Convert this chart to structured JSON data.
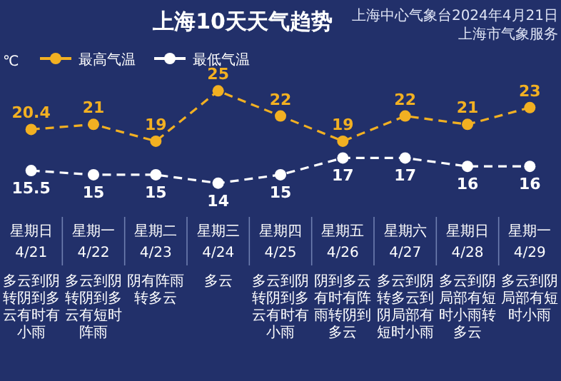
{
  "chart_data": {
    "type": "line",
    "title": "上海10天天气趋势",
    "ylabel": "℃",
    "categories": [
      "4/21",
      "4/22",
      "4/23",
      "4/24",
      "4/25",
      "4/26",
      "4/27",
      "4/28",
      "4/29"
    ],
    "series": [
      {
        "name": "最高气温",
        "color": "#f2b022",
        "values": [
          20.4,
          21,
          19,
          25,
          22,
          19,
          22,
          21,
          23
        ]
      },
      {
        "name": "最低气温",
        "color": "#ffffff",
        "values": [
          15.5,
          15,
          15,
          14,
          15,
          17,
          17,
          16,
          16
        ]
      }
    ],
    "data_labels": true,
    "marker": "circle",
    "line_style": "dashed",
    "legend": "top left",
    "tick_labels": "x",
    "annotations": [
      "上海中心气象台2024年4月21日",
      "上海市气象服务",
      "星期日",
      "星期一",
      "星期二",
      "星期三",
      "星期四",
      "星期五",
      "星期六",
      "星期日",
      "星期一",
      "多云到阴转阴到多云有时有小雨",
      "多云到阴转阴到多云有短时阵雨",
      "阴有阵雨转多云",
      "多云",
      "多云到阴转阴到多云有时有小雨",
      "阴到多云有时有阵雨转阴到多云",
      "多云到阴转多云到阴局部有短时小雨",
      "多云到阴局部有短时小雨转多云",
      "多云到阴局部有短时小雨"
    ]
  }
}
